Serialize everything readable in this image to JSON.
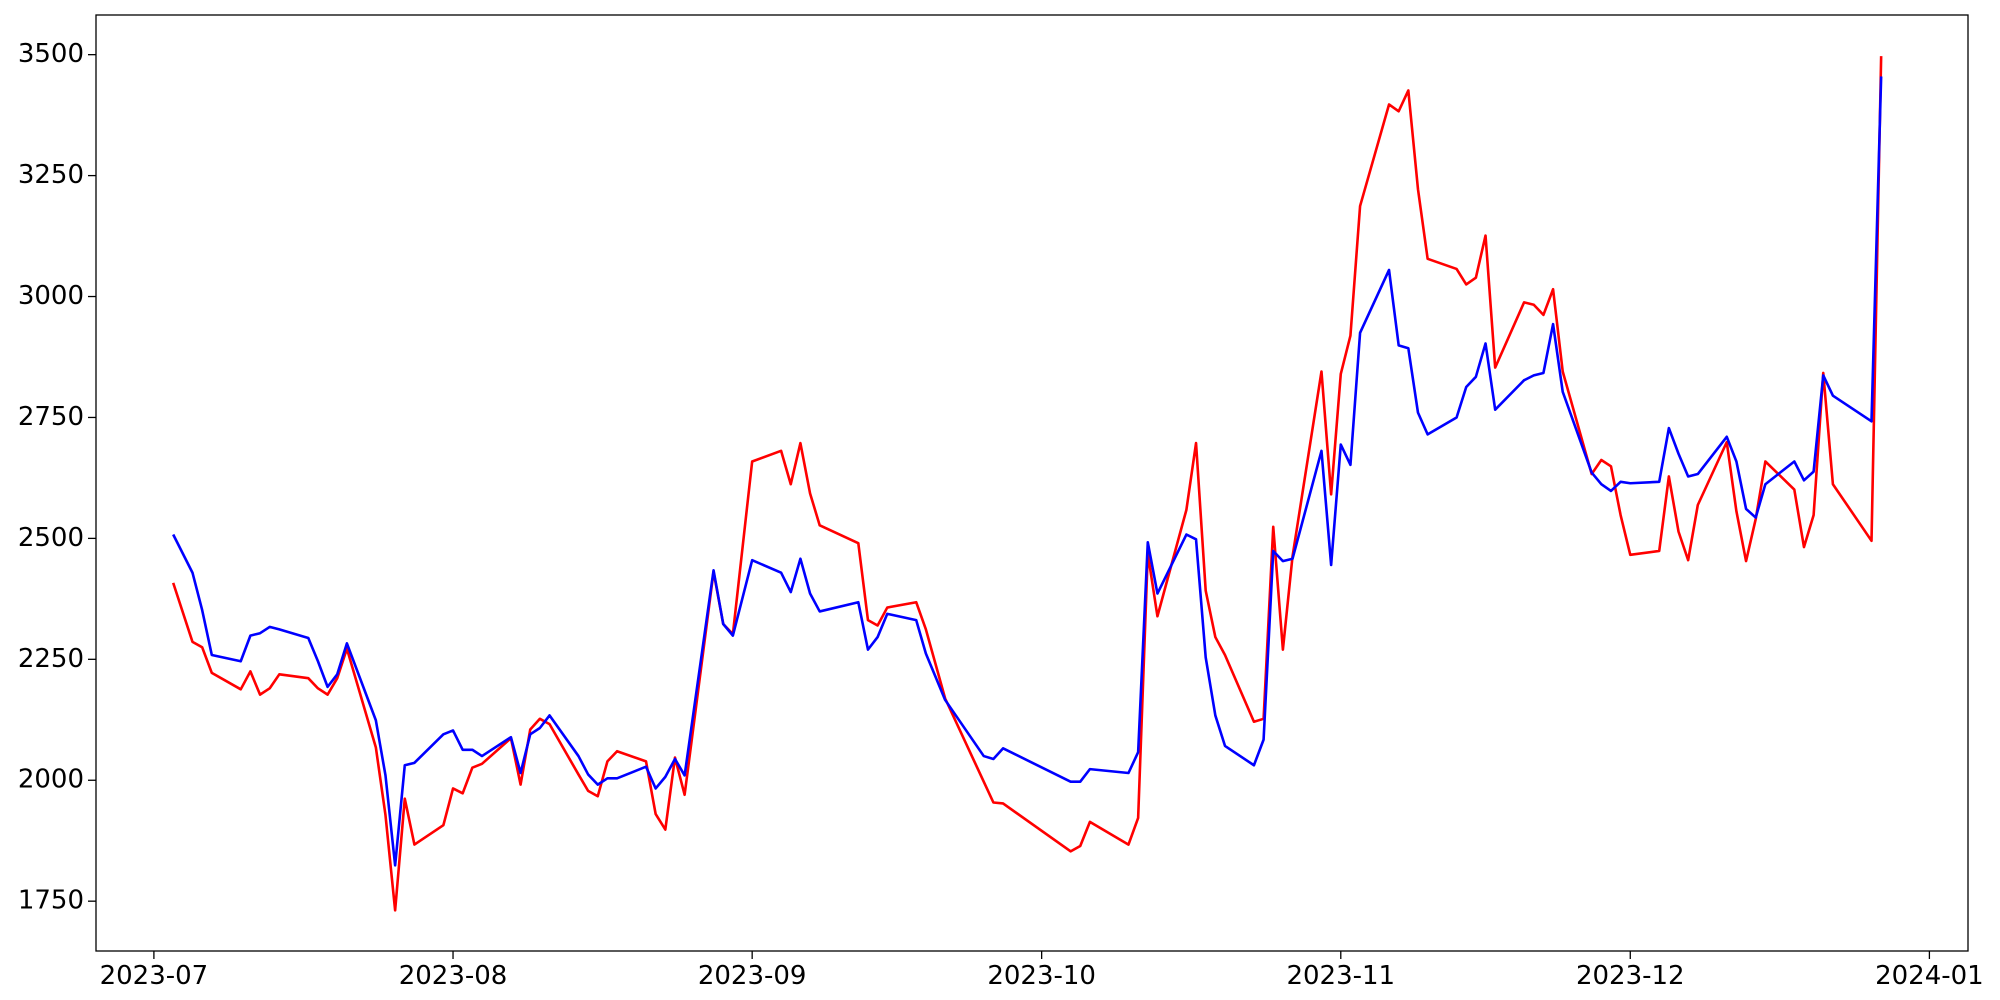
{
  "chart_data": {
    "type": "line",
    "x": [
      "2023-07-03",
      "2023-07-05",
      "2023-07-06",
      "2023-07-07",
      "2023-07-10",
      "2023-07-11",
      "2023-07-12",
      "2023-07-13",
      "2023-07-14",
      "2023-07-17",
      "2023-07-18",
      "2023-07-19",
      "2023-07-20",
      "2023-07-21",
      "2023-07-24",
      "2023-07-25",
      "2023-07-26",
      "2023-07-27",
      "2023-07-28",
      "2023-07-31",
      "2023-08-01",
      "2023-08-02",
      "2023-08-03",
      "2023-08-04",
      "2023-08-07",
      "2023-08-08",
      "2023-08-09",
      "2023-08-10",
      "2023-08-11",
      "2023-08-14",
      "2023-08-15",
      "2023-08-16",
      "2023-08-17",
      "2023-08-18",
      "2023-08-21",
      "2023-08-22",
      "2023-08-23",
      "2023-08-24",
      "2023-08-25",
      "2023-08-28",
      "2023-08-29",
      "2023-08-30",
      "2023-09-01",
      "2023-09-04",
      "2023-09-05",
      "2023-09-06",
      "2023-09-07",
      "2023-09-08",
      "2023-09-12",
      "2023-09-13",
      "2023-09-14",
      "2023-09-15",
      "2023-09-18",
      "2023-09-19",
      "2023-09-21",
      "2023-09-25",
      "2023-09-26",
      "2023-09-27",
      "2023-10-04",
      "2023-10-05",
      "2023-10-06",
      "2023-10-10",
      "2023-10-11",
      "2023-10-12",
      "2023-10-13",
      "2023-10-16",
      "2023-10-17",
      "2023-10-18",
      "2023-10-19",
      "2023-10-20",
      "2023-10-23",
      "2023-10-24",
      "2023-10-25",
      "2023-10-26",
      "2023-10-27",
      "2023-10-30",
      "2023-10-31",
      "2023-11-01",
      "2023-11-02",
      "2023-11-03",
      "2023-11-06",
      "2023-11-07",
      "2023-11-08",
      "2023-11-09",
      "2023-11-10",
      "2023-11-13",
      "2023-11-14",
      "2023-11-15",
      "2023-11-16",
      "2023-11-17",
      "2023-11-20",
      "2023-11-21",
      "2023-11-22",
      "2023-11-23",
      "2023-11-24",
      "2023-11-27",
      "2023-11-28",
      "2023-11-29",
      "2023-11-30",
      "2023-12-01",
      "2023-12-04",
      "2023-12-05",
      "2023-12-06",
      "2023-12-07",
      "2023-12-08",
      "2023-12-11",
      "2023-12-12",
      "2023-12-13",
      "2023-12-14",
      "2023-12-15",
      "2023-12-18",
      "2023-12-19",
      "2023-12-20",
      "2023-12-21",
      "2023-12-22",
      "2023-12-26",
      "2023-12-27"
    ],
    "series": [
      {
        "color": "#ff0000",
        "values": [
          2408,
          2286,
          2275,
          2222,
          2188,
          2225,
          2177,
          2190,
          2219,
          2211,
          2190,
          2177,
          2211,
          2272,
          2068,
          1928,
          1731,
          1962,
          1867,
          1907,
          1983,
          1973,
          2026,
          2034,
          2087,
          1991,
          2105,
          2127,
          2116,
          2012,
          1978,
          1967,
          2039,
          2060,
          2039,
          1930,
          1898,
          2047,
          1970,
          2431,
          2323,
          2302,
          2659,
          2681,
          2612,
          2697,
          2593,
          2527,
          2490,
          2331,
          2320,
          2357,
          2368,
          2312,
          2169,
          1997,
          1954,
          1952,
          1853,
          1864,
          1914,
          1867,
          1922,
          2469,
          2339,
          2559,
          2697,
          2392,
          2296,
          2259,
          2121,
          2127,
          2524,
          2270,
          2463,
          2845,
          2591,
          2840,
          2919,
          3187,
          3397,
          3383,
          3426,
          3222,
          3078,
          3057,
          3025,
          3039,
          3126,
          2853,
          2988,
          2983,
          2962,
          3015,
          2845,
          2633,
          2662,
          2649,
          2548,
          2466,
          2474,
          2628,
          2514,
          2455,
          2569,
          2699,
          2556,
          2453,
          2540,
          2659,
          2601,
          2482,
          2548,
          2842,
          2612,
          2495,
          3497
        ]
      },
      {
        "color": "#0000ff",
        "values": [
          2508,
          2429,
          2352,
          2259,
          2246,
          2299,
          2304,
          2317,
          2312,
          2294,
          2246,
          2193,
          2219,
          2283,
          2124,
          2010,
          1824,
          2031,
          2036,
          2095,
          2103,
          2063,
          2063,
          2050,
          2089,
          2015,
          2095,
          2108,
          2134,
          2050,
          2012,
          1991,
          2004,
          2004,
          2028,
          1983,
          2007,
          2044,
          2010,
          2434,
          2323,
          2299,
          2455,
          2429,
          2389,
          2458,
          2386,
          2349,
          2368,
          2270,
          2296,
          2344,
          2331,
          2262,
          2166,
          2050,
          2044,
          2066,
          1997,
          1997,
          2023,
          2015,
          2058,
          2492,
          2386,
          2508,
          2498,
          2254,
          2134,
          2071,
          2031,
          2084,
          2474,
          2453,
          2458,
          2681,
          2445,
          2694,
          2652,
          2925,
          3055,
          2899,
          2893,
          2760,
          2715,
          2750,
          2813,
          2834,
          2903,
          2766,
          2827,
          2837,
          2842,
          2943,
          2803,
          2636,
          2612,
          2598,
          2617,
          2614,
          2617,
          2728,
          2675,
          2628,
          2633,
          2710,
          2659,
          2561,
          2543,
          2612,
          2659,
          2620,
          2638,
          2837,
          2795,
          2742,
          3455
        ]
      }
    ],
    "xlim": [
      "2023-06-25",
      "2024-01-05"
    ],
    "xticks": [
      {
        "value": "2023-07-01",
        "label": "2023-07"
      },
      {
        "value": "2023-08-01",
        "label": "2023-08"
      },
      {
        "value": "2023-09-01",
        "label": "2023-09"
      },
      {
        "value": "2023-10-01",
        "label": "2023-10"
      },
      {
        "value": "2023-11-01",
        "label": "2023-11"
      },
      {
        "value": "2023-12-01",
        "label": "2023-12"
      },
      {
        "value": "2024-01-01",
        "label": "2024-01"
      }
    ],
    "ylim": [
      1647,
      3582
    ],
    "yticks": [
      1750,
      2000,
      2250,
      2500,
      2750,
      3000,
      3250,
      3500
    ]
  }
}
